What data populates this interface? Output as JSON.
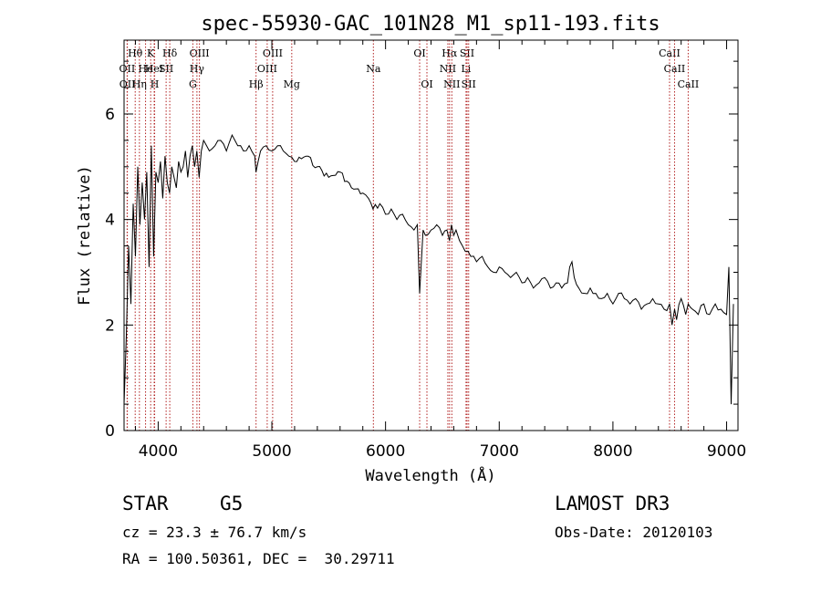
{
  "chart_data": {
    "type": "line",
    "title": "spec-55930-GAC_101N28_M1_sp11-193.fits",
    "xlabel": "Wavelength (Å)",
    "ylabel": "Flux (relative)",
    "xlim": [
      3700,
      9100
    ],
    "ylim": [
      0,
      7.4
    ],
    "xticks": [
      4000,
      5000,
      6000,
      7000,
      8000,
      9000
    ],
    "xtick_labels": [
      "4000",
      "5000",
      "6000",
      "7000",
      "8000",
      "9000"
    ],
    "yticks": [
      0,
      2,
      4,
      6
    ],
    "ytick_labels": [
      "0",
      "2",
      "4",
      "6"
    ],
    "grid": false,
    "line_color": "#000000",
    "marker_color": "#b22222",
    "series": [
      {
        "name": "spectrum",
        "x": [
          3700,
          3720,
          3740,
          3760,
          3780,
          3800,
          3820,
          3840,
          3860,
          3880,
          3900,
          3920,
          3940,
          3960,
          3980,
          4000,
          4020,
          4040,
          4060,
          4080,
          4100,
          4120,
          4140,
          4160,
          4180,
          4200,
          4220,
          4240,
          4260,
          4280,
          4300,
          4320,
          4340,
          4360,
          4380,
          4400,
          4450,
          4500,
          4550,
          4600,
          4650,
          4700,
          4750,
          4800,
          4850,
          4860,
          4900,
          4950,
          5000,
          5050,
          5100,
          5150,
          5200,
          5300,
          5400,
          5500,
          5600,
          5700,
          5800,
          5850,
          5890,
          5950,
          6000,
          6050,
          6100,
          6150,
          6200,
          6250,
          6280,
          6300,
          6330,
          6350,
          6400,
          6450,
          6500,
          6540,
          6563,
          6580,
          6600,
          6620,
          6650,
          6700,
          6750,
          6800,
          6850,
          6900,
          6950,
          7000,
          7050,
          7100,
          7150,
          7200,
          7250,
          7300,
          7350,
          7400,
          7450,
          7500,
          7550,
          7600,
          7620,
          7640,
          7660,
          7700,
          7750,
          7800,
          7850,
          7900,
          7950,
          8000,
          8050,
          8100,
          8150,
          8200,
          8250,
          8300,
          8350,
          8400,
          8450,
          8498,
          8520,
          8542,
          8560,
          8600,
          8640,
          8662,
          8700,
          8750,
          8800,
          8850,
          8900,
          8950,
          9000,
          9020,
          9040,
          9060
        ],
        "y": [
          0.5,
          1.8,
          3.5,
          2.4,
          4.3,
          3.3,
          5.0,
          3.9,
          4.7,
          4.0,
          4.9,
          3.1,
          5.4,
          3.3,
          4.9,
          4.7,
          5.1,
          4.4,
          5.2,
          4.7,
          4.5,
          5.0,
          4.8,
          4.6,
          5.1,
          4.9,
          5.0,
          5.3,
          4.8,
          5.2,
          5.4,
          5.0,
          5.3,
          4.8,
          5.3,
          5.5,
          5.3,
          5.4,
          5.5,
          5.3,
          5.6,
          5.4,
          5.3,
          5.4,
          5.2,
          4.9,
          5.3,
          5.4,
          5.3,
          5.4,
          5.3,
          5.2,
          5.1,
          5.2,
          5.0,
          4.8,
          4.9,
          4.6,
          4.5,
          4.4,
          4.2,
          4.3,
          4.1,
          4.2,
          4.0,
          4.1,
          3.9,
          3.8,
          3.9,
          2.6,
          3.8,
          3.7,
          3.8,
          3.9,
          3.7,
          3.8,
          3.6,
          3.9,
          3.7,
          3.8,
          3.6,
          3.4,
          3.3,
          3.2,
          3.3,
          3.1,
          3.0,
          3.1,
          3.0,
          2.9,
          3.0,
          2.8,
          2.9,
          2.7,
          2.8,
          2.9,
          2.7,
          2.8,
          2.7,
          2.8,
          3.1,
          3.2,
          2.9,
          2.7,
          2.6,
          2.7,
          2.6,
          2.5,
          2.6,
          2.4,
          2.6,
          2.5,
          2.4,
          2.5,
          2.3,
          2.4,
          2.5,
          2.4,
          2.3,
          2.4,
          2.0,
          2.3,
          2.1,
          2.5,
          2.2,
          2.4,
          2.3,
          2.2,
          2.4,
          2.2,
          2.4,
          2.3,
          2.2,
          3.1,
          0.5,
          2.4
        ]
      }
    ],
    "line_markers": [
      {
        "label": "Hθ",
        "x": 3798,
        "row": 1
      },
      {
        "label": "OII",
        "x": 3727,
        "row": 2
      },
      {
        "label": "OII",
        "x": 3729,
        "row": 3
      },
      {
        "label": "He",
        "x": 3889,
        "row": 2
      },
      {
        "label": "Hη",
        "x": 3835,
        "row": 3
      },
      {
        "label": "K",
        "x": 3934,
        "row": 1
      },
      {
        "label": "H",
        "x": 3969,
        "row": 3
      },
      {
        "label": "HeI",
        "x": 3965,
        "row": 2
      },
      {
        "label": "Hδ",
        "x": 4102,
        "row": 1
      },
      {
        "label": "SII",
        "x": 4070,
        "row": 2
      },
      {
        "label": "OIII",
        "x": 4363,
        "row": 1
      },
      {
        "label": "Hγ",
        "x": 4341,
        "row": 2
      },
      {
        "label": "G",
        "x": 4305,
        "row": 3
      },
      {
        "label": "Hβ",
        "x": 4861,
        "row": 3
      },
      {
        "label": "OIII",
        "x": 5007,
        "row": 1
      },
      {
        "label": "OIII",
        "x": 4959,
        "row": 2
      },
      {
        "label": "Mg",
        "x": 5175,
        "row": 3
      },
      {
        "label": "Na",
        "x": 5893,
        "row": 2
      },
      {
        "label": "OI",
        "x": 6300,
        "row": 1
      },
      {
        "label": "OI",
        "x": 6364,
        "row": 3
      },
      {
        "label": "Hα",
        "x": 6563,
        "row": 1
      },
      {
        "label": "SII",
        "x": 6717,
        "row": 1
      },
      {
        "label": "NII",
        "x": 6548,
        "row": 2
      },
      {
        "label": "Li",
        "x": 6708,
        "row": 2
      },
      {
        "label": "NII",
        "x": 6583,
        "row": 3
      },
      {
        "label": "SII",
        "x": 6731,
        "row": 3
      },
      {
        "label": "CaII",
        "x": 8498,
        "row": 1
      },
      {
        "label": "CaII",
        "x": 8542,
        "row": 2
      },
      {
        "label": "CaII",
        "x": 8662,
        "row": 3
      }
    ]
  },
  "info": {
    "object_class": "STAR",
    "subclass": "G5",
    "survey": "LAMOST DR3",
    "cz": "cz = 23.3 ± 76.7 km/s",
    "obs_date": "Obs-Date: 20120103",
    "coords": "RA = 100.50361, DEC =  30.29711"
  }
}
